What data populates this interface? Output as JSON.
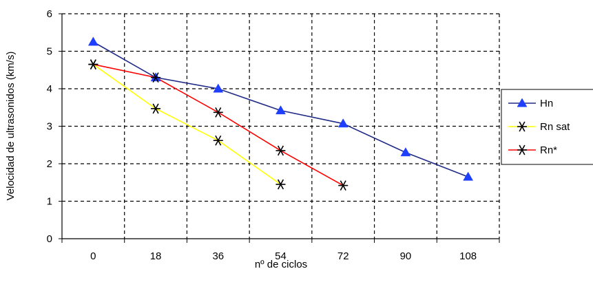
{
  "chart_data": {
    "type": "line",
    "title": "",
    "xlabel": "nº de ciclos",
    "ylabel": "Velocidad de ultrasonidos (km/s)",
    "categories": [
      "0",
      "18",
      "36",
      "54",
      "72",
      "90",
      "108"
    ],
    "ylim": [
      0,
      6
    ],
    "yticks": [
      "0",
      "1",
      "2",
      "3",
      "4",
      "5",
      "6"
    ],
    "grid": true,
    "legend_position": "right",
    "series": [
      {
        "name": "Hn",
        "color": "#1f2a86",
        "marker": "triangle",
        "marker_color": "#1f3fff",
        "values": [
          5.25,
          4.3,
          4.0,
          3.42,
          3.07,
          2.3,
          1.65
        ]
      },
      {
        "name": "Rn sat",
        "color": "#ffff00",
        "marker": "asterisk",
        "marker_color": "#000000",
        "values": [
          4.65,
          3.47,
          2.62,
          1.45,
          null,
          null,
          null
        ]
      },
      {
        "name": "Rn*",
        "color": "#ff0000",
        "marker": "asterisk",
        "marker_color": "#000000",
        "values": [
          4.65,
          4.3,
          3.37,
          2.35,
          1.42,
          null,
          null
        ]
      }
    ]
  }
}
